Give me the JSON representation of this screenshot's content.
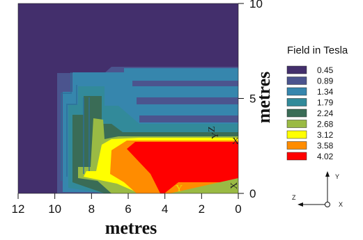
{
  "chart_data": {
    "type": "heatmap",
    "title": "",
    "xlabel": "metres",
    "ylabel": "metres",
    "xlim": [
      12,
      0
    ],
    "ylim": [
      0,
      10
    ],
    "x_ticks": [
      "12",
      "10",
      "8",
      "6",
      "4",
      "2",
      "0"
    ],
    "x_tick_values": [
      12,
      10,
      8,
      6,
      4,
      2,
      0
    ],
    "y_ticks": [
      "10",
      "5",
      "0"
    ],
    "y_tick_values": [
      10,
      5,
      0
    ],
    "legend": {
      "title": "Field in Tesla",
      "entries": [
        {
          "label": "0.45",
          "color": "#432f6c"
        },
        {
          "label": "0.89",
          "color": "#4b548e"
        },
        {
          "label": "1.34",
          "color": "#3686ad"
        },
        {
          "label": "1.79",
          "color": "#328a9a"
        },
        {
          "label": "2.24",
          "color": "#3a6c56"
        },
        {
          "label": "2.68",
          "color": "#9aba44"
        },
        {
          "label": "3.12",
          "color": "#ffff00"
        },
        {
          "label": "3.58",
          "color": "#ff8c00"
        },
        {
          "label": "4.02",
          "color": "#ff0000"
        }
      ]
    },
    "plot_marks": [
      "X",
      "Y",
      "Y",
      "Z",
      "X"
    ]
  },
  "triad": {
    "y": "Y",
    "z": "Z",
    "x": "X"
  }
}
